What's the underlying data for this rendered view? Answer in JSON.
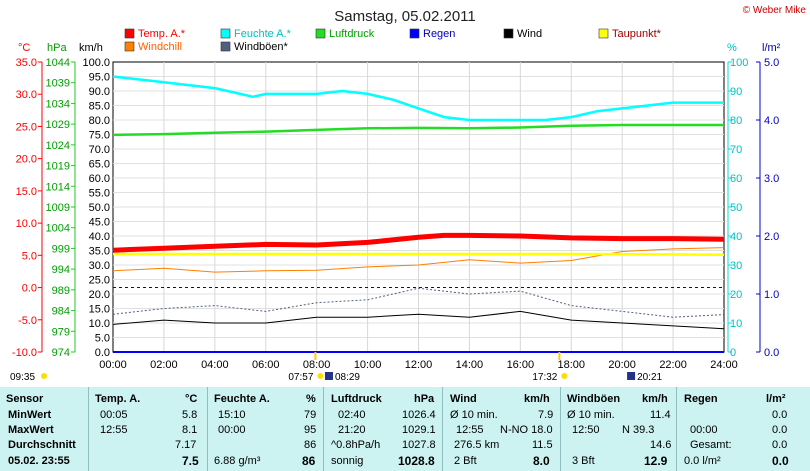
{
  "header": {
    "title": "Samstag, 05.02.2011",
    "credit": "© Weber Mike"
  },
  "legend": {
    "items": [
      {
        "label": "Temp. A.*",
        "color": "#ff0000",
        "text_color": "#ff0000"
      },
      {
        "label": "Feuchte A.*",
        "color": "#00ffff",
        "text_color": "#00c0c0"
      },
      {
        "label": "Luftdruck",
        "color": "#22dd22",
        "text_color": "#00a000"
      },
      {
        "label": "Regen",
        "color": "#0000ff",
        "text_color": "#0000c0"
      },
      {
        "label": "Wind",
        "color": "#000000",
        "text_color": "#000000"
      },
      {
        "label": "Taupunkt*",
        "color": "#ffff00",
        "text_color": "#a00000"
      },
      {
        "label": "Windchill",
        "color": "#ff8000",
        "text_color": "#ff6000"
      },
      {
        "label": "Windböen*",
        "color": "#506080",
        "text_color": "#000000"
      }
    ]
  },
  "axes": {
    "temp_unit": "°C",
    "press_unit": "hPa",
    "wind_unit": "km/h",
    "hum_unit": "%",
    "rain_unit": "l/m²",
    "temp_ticks": [
      "35.0",
      "30.0",
      "25.0",
      "20.0",
      "15.0",
      "10.0",
      "5.0",
      "0.0",
      "-5.0",
      "-10.0"
    ],
    "press_ticks": [
      "1044",
      "1039",
      "1034",
      "1029",
      "1024",
      "1019",
      "1014",
      "1009",
      "1004",
      "999",
      "994",
      "989",
      "984",
      "979",
      "974"
    ],
    "wind_ticks": [
      "100.0",
      "95.0",
      "90.0",
      "85.0",
      "80.0",
      "75.0",
      "70.0",
      "65.0",
      "60.0",
      "55.0",
      "50.0",
      "45.0",
      "40.0",
      "35.0",
      "30.0",
      "25.0",
      "20.0",
      "15.0",
      "10.0",
      "5.0",
      "0.0"
    ],
    "hum_ticks": [
      "100",
      "90",
      "80",
      "70",
      "60",
      "50",
      "40",
      "30",
      "20",
      "10",
      "0"
    ],
    "rain_ticks": [
      "5.0",
      "4.0",
      "3.0",
      "2.0",
      "1.0",
      "0.0"
    ],
    "time_ticks": [
      "00:00",
      "02:00",
      "04:00",
      "06:00",
      "08:00",
      "10:00",
      "12:00",
      "14:00",
      "16:00",
      "18:00",
      "20:00",
      "22:00",
      "24:00"
    ]
  },
  "sun": {
    "rise": "07:57",
    "set": "17:32",
    "moon_rise": "08:29",
    "moon_set": "20:21",
    "now": "09:35"
  },
  "chart_data": {
    "type": "line",
    "title": "Samstag, 05.02.2011",
    "x_unit": "time of day",
    "xlim": [
      "00:00",
      "24:00"
    ],
    "series": [
      {
        "name": "Temp. A.*",
        "axis": "°C",
        "color": "#ff0000",
        "x": [
          "00:00",
          "02:00",
          "04:00",
          "06:00",
          "08:00",
          "10:00",
          "12:00",
          "13:00",
          "14:00",
          "16:00",
          "18:00",
          "20:00",
          "22:00",
          "24:00"
        ],
        "values": [
          5.8,
          6.1,
          6.4,
          6.7,
          6.6,
          7.0,
          7.8,
          8.1,
          8.1,
          8.0,
          7.7,
          7.6,
          7.6,
          7.5
        ]
      },
      {
        "name": "Feuchte A.*",
        "axis": "%",
        "color": "#00ffff",
        "x": [
          "00:00",
          "01:00",
          "02:00",
          "03:00",
          "04:00",
          "05:00",
          "05:30",
          "06:00",
          "08:00",
          "09:00",
          "10:00",
          "11:00",
          "12:00",
          "13:00",
          "14:00",
          "15:00",
          "16:00",
          "17:00",
          "18:00",
          "19:00",
          "20:00",
          "21:00",
          "22:00",
          "23:00",
          "24:00"
        ],
        "values": [
          95,
          94,
          93,
          92,
          91,
          89,
          88,
          89,
          89,
          90,
          89,
          87,
          84,
          81,
          80,
          80,
          80,
          80,
          81,
          83,
          84,
          85,
          86,
          86,
          86
        ]
      },
      {
        "name": "Luftdruck",
        "axis": "hPa",
        "color": "#22dd22",
        "x": [
          "00:00",
          "02:00",
          "04:00",
          "06:00",
          "08:00",
          "10:00",
          "12:00",
          "14:00",
          "16:00",
          "18:00",
          "20:00",
          "22:00",
          "24:00"
        ],
        "values": [
          1026.4,
          1026.6,
          1026.9,
          1027.2,
          1027.6,
          1028.0,
          1028.1,
          1028.0,
          1028.2,
          1028.6,
          1028.8,
          1028.8,
          1028.8
        ]
      },
      {
        "name": "Taupunkt*",
        "axis": "°C",
        "color": "#ffff00",
        "x": [
          "00:00",
          "12:00",
          "18:00",
          "24:00"
        ],
        "values": [
          5.2,
          5.2,
          5.2,
          5.1
        ]
      },
      {
        "name": "Windchill",
        "axis": "°C",
        "color": "#ff8000",
        "x": [
          "00:00",
          "02:00",
          "04:00",
          "06:00",
          "08:00",
          "10:00",
          "12:00",
          "14:00",
          "16:00",
          "18:00",
          "20:00",
          "22:00",
          "24:00"
        ],
        "values": [
          2.6,
          3.0,
          2.4,
          2.6,
          2.7,
          3.2,
          3.5,
          4.3,
          3.8,
          4.2,
          5.6,
          6.0,
          6.2
        ]
      },
      {
        "name": "Wind",
        "axis": "km/h",
        "color": "#000000",
        "x": [
          "00:00",
          "02:00",
          "04:00",
          "06:00",
          "08:00",
          "10:00",
          "12:00",
          "14:00",
          "16:00",
          "18:00",
          "20:00",
          "22:00",
          "24:00"
        ],
        "values": [
          9.5,
          11,
          10,
          10,
          12,
          12,
          13,
          12,
          14,
          11,
          10,
          9,
          8.0
        ]
      },
      {
        "name": "Windböen*",
        "axis": "km/h",
        "color": "#506080",
        "x": [
          "00:00",
          "02:00",
          "04:00",
          "06:00",
          "08:00",
          "10:00",
          "12:00",
          "14:00",
          "16:00",
          "18:00",
          "20:00",
          "22:00",
          "24:00"
        ],
        "values": [
          13,
          15,
          16,
          14,
          17,
          18,
          22,
          20,
          21,
          16,
          14,
          12,
          12.9
        ]
      },
      {
        "name": "Regen",
        "axis": "l/m²",
        "color": "#0000ff",
        "x": [
          "00:00",
          "24:00"
        ],
        "values": [
          0.0,
          0.0
        ]
      }
    ]
  },
  "table": {
    "col_sensor": {
      "header": "Sensor",
      "rows": [
        "MinWert",
        "MaxWert",
        "Durchschnitt",
        "05.02. 23:55"
      ]
    },
    "col_temp": {
      "header": "Temp. A.",
      "unit": "°C",
      "rows": [
        [
          "00:05",
          "5.8"
        ],
        [
          "12:55",
          "8.1"
        ],
        [
          "",
          "7.17"
        ],
        [
          "",
          "7.5"
        ]
      ]
    },
    "col_hum": {
      "header": "Feuchte A.",
      "unit": "%",
      "rows": [
        [
          "15:10",
          "79"
        ],
        [
          "00:00",
          "95"
        ],
        [
          "",
          "86"
        ],
        [
          "6.88 g/m³",
          "86"
        ]
      ]
    },
    "col_press": {
      "header": "Luftdruck",
      "unit": "hPa",
      "rows": [
        [
          "02:40",
          "1026.4"
        ],
        [
          "21:20",
          "1029.1"
        ],
        [
          "^0.8hPa/h",
          "1027.8"
        ],
        [
          "sonnig",
          "1028.8"
        ]
      ]
    },
    "col_wind": {
      "header": "Wind",
      "unit": "km/h",
      "rows": [
        [
          "Ø 10 min.",
          "7.9"
        ],
        [
          "12:55",
          "N-NO 18.0"
        ],
        [
          "276.5 km",
          "11.5"
        ],
        [
          "2 Bft",
          "8.0"
        ]
      ]
    },
    "col_gust": {
      "header": "Windböen",
      "unit": "km/h",
      "rows": [
        [
          "Ø 10 min.",
          "11.4"
        ],
        [
          "12:50",
          "N 39.3"
        ],
        [
          "",
          "14.6"
        ],
        [
          "3 Bft",
          "12.9"
        ]
      ]
    },
    "col_rain": {
      "header": "Regen",
      "unit": "l/m²",
      "rows": [
        [
          "",
          "0.0"
        ],
        [
          "00:00",
          "0.0"
        ],
        [
          "Gesamt:",
          "0.0"
        ],
        [
          "0.0 l/m²",
          "0.0"
        ]
      ]
    }
  }
}
